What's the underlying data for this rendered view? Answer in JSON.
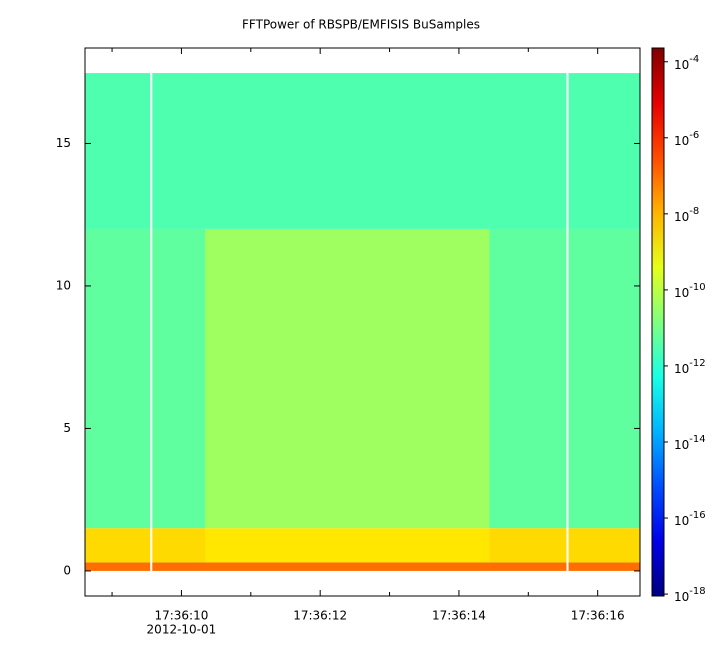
{
  "chart_data": {
    "type": "spectrogram",
    "title": "FFTPower of RBSPB/EMFISIS  BuSamples",
    "x_date_label": "2012-10-01",
    "xlim": [
      8.61,
      16.61
    ],
    "xticks": [
      {
        "value": 10,
        "label": "17:36:10"
      },
      {
        "value": 12,
        "label": "17:36:12"
      },
      {
        "value": 14,
        "label": "17:36:14"
      },
      {
        "value": 16,
        "label": "17:36:16"
      }
    ],
    "x_minor_ticks": [
      9,
      11,
      13,
      15
    ],
    "ylim": [
      -0.88,
      18.35
    ],
    "yticks": [
      0,
      5,
      10,
      15
    ],
    "time_bins": [
      8.61,
      9.55,
      9.58,
      10.34,
      14.44,
      15.55,
      15.58,
      16.61
    ],
    "freq_bins": [
      0,
      0.3,
      1.5,
      12,
      17.47
    ],
    "z": [
      [
        1e-07,
        null,
        1e-07,
        1e-07,
        1e-07,
        null,
        1e-07
      ],
      [
        3e-09,
        null,
        3e-09,
        2e-09,
        3e-09,
        null,
        3e-09
      ],
      [
        5e-12,
        null,
        5e-12,
        4e-11,
        5e-12,
        null,
        5e-12
      ],
      [
        3e-12,
        null,
        3e-12,
        3e-12,
        3e-12,
        null,
        3e-12
      ]
    ],
    "zscale": "log",
    "zlim": [
      8.9e-19,
      0.00023
    ],
    "zticks": [
      {
        "value": 0.0001,
        "label": "10",
        "exponent": "-4"
      },
      {
        "value": 1e-06,
        "label": "10",
        "exponent": "-6"
      },
      {
        "value": 1e-08,
        "label": "10",
        "exponent": "-8"
      },
      {
        "value": 1e-10,
        "label": "10",
        "exponent": "-10"
      },
      {
        "value": 1e-12,
        "label": "10",
        "exponent": "-12"
      },
      {
        "value": 1e-14,
        "label": "10",
        "exponent": "-14"
      },
      {
        "value": 1e-16,
        "label": "10",
        "exponent": "-16"
      },
      {
        "value": 1e-18,
        "label": "10",
        "exponent": "-18"
      }
    ],
    "colormap": "jet"
  }
}
